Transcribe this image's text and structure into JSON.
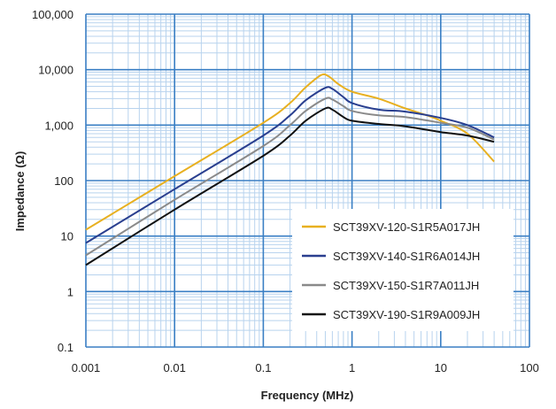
{
  "chart_data": {
    "type": "line",
    "title": "",
    "xlabel": "Frequency (MHz)",
    "ylabel": "Impedance (Ω)",
    "x_scale": "log",
    "y_scale": "log",
    "xlim": [
      0.001,
      100
    ],
    "ylim": [
      0.1,
      100000
    ],
    "x_ticks": [
      "0.001",
      "0.01",
      "0.1",
      "1",
      "10",
      "100"
    ],
    "y_ticks": [
      "0.1",
      "1",
      "10",
      "100",
      "1,000",
      "10,000",
      "100,000"
    ],
    "grid": true,
    "legend_position": "bottom-right",
    "series": [
      {
        "name": "SCT39XV-120-S1R5A017JH",
        "color": "#e8b020",
        "points": [
          [
            0.001,
            13
          ],
          [
            0.01,
            120
          ],
          [
            0.1,
            1100
          ],
          [
            0.2,
            2500
          ],
          [
            0.3,
            4800
          ],
          [
            0.45,
            8000
          ],
          [
            0.55,
            7500
          ],
          [
            0.7,
            5500
          ],
          [
            1,
            4000
          ],
          [
            2,
            3000
          ],
          [
            4,
            2000
          ],
          [
            7,
            1500
          ],
          [
            10,
            1200
          ],
          [
            20,
            700
          ],
          [
            40,
            220
          ]
        ]
      },
      {
        "name": "SCT39XV-140-S1R6A014JH",
        "color": "#2a3f8f",
        "points": [
          [
            0.001,
            7.5
          ],
          [
            0.01,
            70
          ],
          [
            0.1,
            650
          ],
          [
            0.2,
            1500
          ],
          [
            0.3,
            2800
          ],
          [
            0.5,
            4700
          ],
          [
            0.6,
            4500
          ],
          [
            0.8,
            3200
          ],
          [
            1,
            2500
          ],
          [
            2,
            1900
          ],
          [
            4,
            1750
          ],
          [
            10,
            1350
          ],
          [
            20,
            1000
          ],
          [
            40,
            600
          ]
        ]
      },
      {
        "name": "SCT39XV-150-S1R7A011JH",
        "color": "#8a8a8a",
        "points": [
          [
            0.001,
            4.5
          ],
          [
            0.01,
            45
          ],
          [
            0.1,
            420
          ],
          [
            0.2,
            1000
          ],
          [
            0.3,
            1800
          ],
          [
            0.5,
            3000
          ],
          [
            0.6,
            2900
          ],
          [
            0.8,
            2200
          ],
          [
            1,
            1800
          ],
          [
            2,
            1500
          ],
          [
            4,
            1400
          ],
          [
            10,
            1100
          ],
          [
            20,
            900
          ],
          [
            40,
            550
          ]
        ]
      },
      {
        "name": "SCT39XV-190-S1R9A009JH",
        "color": "#111111",
        "points": [
          [
            0.001,
            3
          ],
          [
            0.01,
            30
          ],
          [
            0.1,
            280
          ],
          [
            0.2,
            650
          ],
          [
            0.3,
            1200
          ],
          [
            0.5,
            2000
          ],
          [
            0.6,
            1900
          ],
          [
            0.8,
            1400
          ],
          [
            1,
            1200
          ],
          [
            2,
            1050
          ],
          [
            4,
            950
          ],
          [
            10,
            750
          ],
          [
            20,
            650
          ],
          [
            40,
            500
          ]
        ]
      }
    ],
    "colors": {
      "grid_major": "#3a7fc4",
      "grid_minor": "#b8d3ee"
    }
  }
}
